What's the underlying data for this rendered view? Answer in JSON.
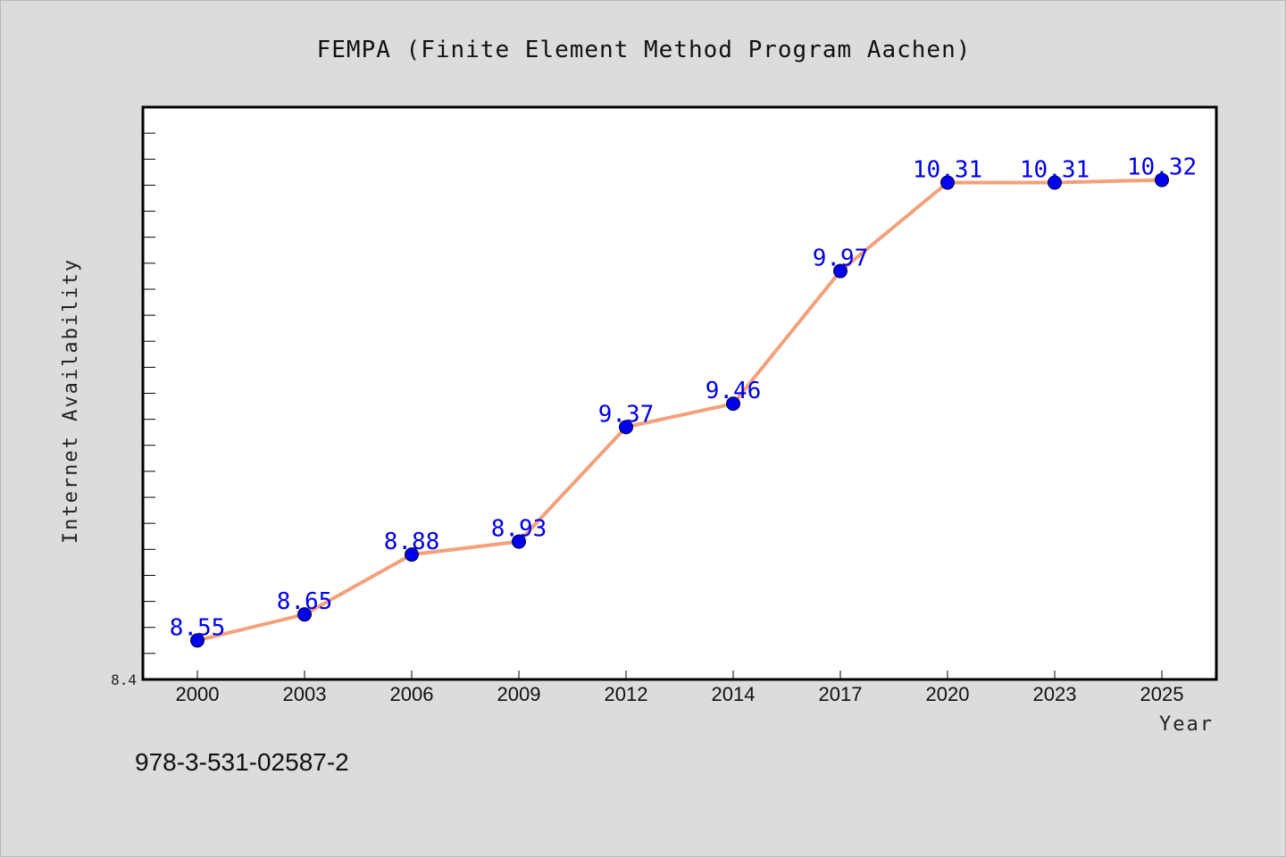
{
  "chart_data": {
    "type": "line",
    "title": "FEMPA (Finite Element Method Program Aachen)",
    "xlabel": "Year",
    "ylabel": "Internet Availability",
    "categories": [
      "2000",
      "2003",
      "2006",
      "2009",
      "2012",
      "2014",
      "2017",
      "2020",
      "2023",
      "2025"
    ],
    "values": [
      8.55,
      8.65,
      8.88,
      8.93,
      9.37,
      9.46,
      9.97,
      10.31,
      10.31,
      10.32
    ],
    "data_labels": [
      "8.55",
      "8.65",
      "8.88",
      "8.93",
      "9.37",
      "9.46",
      "9.97",
      "10.31",
      "10.31",
      "10.32"
    ],
    "ylim": [
      8.4,
      10.6
    ],
    "yticks_labeled": [
      "8.4"
    ],
    "minor_tick_step": 0.1,
    "grid": false,
    "legend": "none",
    "colors": {
      "line": "#f4a07a",
      "marker": "#0000ee",
      "label": "#0000ee"
    }
  },
  "footer": {
    "code": "978-3-531-02587-2"
  }
}
